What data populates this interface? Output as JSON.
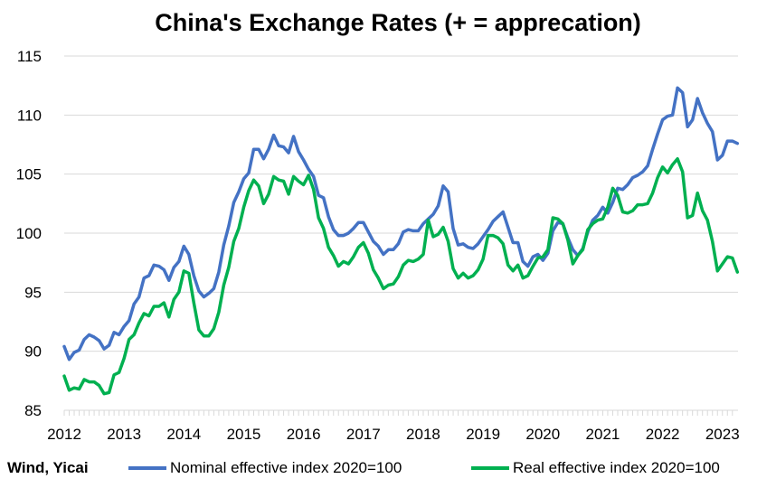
{
  "chart_data": {
    "type": "line",
    "title": "China's Exchange Rates (+ = apprecation)",
    "source": "Wind, Yicai",
    "xlabel": "",
    "ylabel": "",
    "x_tick_labels": [
      "2012",
      "2013",
      "2014",
      "2015",
      "2016",
      "2017",
      "2018",
      "2019",
      "2020",
      "2021",
      "2022",
      "2023"
    ],
    "y_ticks": [
      85,
      90,
      95,
      100,
      105,
      110,
      115
    ],
    "y_tick_labels": [
      "85",
      "90",
      "95",
      "100",
      "105",
      "110",
      "115"
    ],
    "ylim": [
      85,
      115
    ],
    "x_range": [
      "2012-01",
      "2023-03"
    ],
    "grid": "horizontal",
    "legend_position": "bottom",
    "colors": {
      "nominal": "#4472c4",
      "real": "#00b050",
      "grid": "#d9d9d9"
    },
    "series": [
      {
        "name": "Nominal effective index 2020=100",
        "color": "#4472c4",
        "points": [
          [
            "2012-01",
            90.4
          ],
          [
            "2012-02",
            89.3
          ],
          [
            "2012-03",
            89.9
          ],
          [
            "2012-04",
            90.1
          ],
          [
            "2012-05",
            91.0
          ],
          [
            "2012-06",
            91.4
          ],
          [
            "2012-07",
            91.2
          ],
          [
            "2012-08",
            90.9
          ],
          [
            "2012-09",
            90.2
          ],
          [
            "2012-10",
            90.5
          ],
          [
            "2012-11",
            91.6
          ],
          [
            "2012-12",
            91.4
          ],
          [
            "2013-01",
            92.1
          ],
          [
            "2013-02",
            92.6
          ],
          [
            "2013-03",
            94.0
          ],
          [
            "2013-04",
            94.6
          ],
          [
            "2013-05",
            96.2
          ],
          [
            "2013-06",
            96.4
          ],
          [
            "2013-07",
            97.3
          ],
          [
            "2013-08",
            97.2
          ],
          [
            "2013-09",
            96.9
          ],
          [
            "2013-10",
            96.0
          ],
          [
            "2013-11",
            97.1
          ],
          [
            "2013-12",
            97.6
          ],
          [
            "2014-01",
            98.9
          ],
          [
            "2014-02",
            98.2
          ],
          [
            "2014-03",
            96.4
          ],
          [
            "2014-04",
            95.1
          ],
          [
            "2014-05",
            94.6
          ],
          [
            "2014-06",
            94.9
          ],
          [
            "2014-07",
            95.3
          ],
          [
            "2014-08",
            96.7
          ],
          [
            "2014-09",
            99.0
          ],
          [
            "2014-10",
            100.6
          ],
          [
            "2014-11",
            102.6
          ],
          [
            "2014-12",
            103.5
          ],
          [
            "2015-01",
            104.6
          ],
          [
            "2015-02",
            105.1
          ],
          [
            "2015-03",
            107.1
          ],
          [
            "2015-04",
            107.1
          ],
          [
            "2015-05",
            106.3
          ],
          [
            "2015-06",
            107.1
          ],
          [
            "2015-07",
            108.3
          ],
          [
            "2015-08",
            107.4
          ],
          [
            "2015-09",
            107.3
          ],
          [
            "2015-10",
            106.8
          ],
          [
            "2015-11",
            108.2
          ],
          [
            "2015-12",
            106.9
          ],
          [
            "2016-01",
            106.2
          ],
          [
            "2016-02",
            105.4
          ],
          [
            "2016-03",
            104.8
          ],
          [
            "2016-04",
            103.2
          ],
          [
            "2016-05",
            103.0
          ],
          [
            "2016-06",
            101.4
          ],
          [
            "2016-07",
            100.3
          ],
          [
            "2016-08",
            99.8
          ],
          [
            "2016-09",
            99.8
          ],
          [
            "2016-10",
            100.0
          ],
          [
            "2016-11",
            100.4
          ],
          [
            "2016-12",
            100.9
          ],
          [
            "2017-01",
            100.9
          ],
          [
            "2017-02",
            100.1
          ],
          [
            "2017-03",
            99.3
          ],
          [
            "2017-04",
            98.9
          ],
          [
            "2017-05",
            98.2
          ],
          [
            "2017-06",
            98.6
          ],
          [
            "2017-07",
            98.6
          ],
          [
            "2017-08",
            99.1
          ],
          [
            "2017-09",
            100.1
          ],
          [
            "2017-10",
            100.3
          ],
          [
            "2017-11",
            100.2
          ],
          [
            "2017-12",
            100.2
          ],
          [
            "2018-01",
            100.8
          ],
          [
            "2018-02",
            101.2
          ],
          [
            "2018-03",
            101.6
          ],
          [
            "2018-04",
            102.3
          ],
          [
            "2018-05",
            104.0
          ],
          [
            "2018-06",
            103.5
          ],
          [
            "2018-07",
            100.4
          ],
          [
            "2018-08",
            99.0
          ],
          [
            "2018-09",
            99.1
          ],
          [
            "2018-10",
            98.8
          ],
          [
            "2018-11",
            98.7
          ],
          [
            "2018-12",
            99.1
          ],
          [
            "2019-01",
            99.7
          ],
          [
            "2019-02",
            100.3
          ],
          [
            "2019-03",
            101.0
          ],
          [
            "2019-04",
            101.4
          ],
          [
            "2019-05",
            101.8
          ],
          [
            "2019-06",
            100.5
          ],
          [
            "2019-07",
            99.2
          ],
          [
            "2019-08",
            99.2
          ],
          [
            "2019-09",
            97.6
          ],
          [
            "2019-10",
            97.2
          ],
          [
            "2019-11",
            98.0
          ],
          [
            "2019-12",
            98.2
          ],
          [
            "2020-01",
            97.7
          ],
          [
            "2020-02",
            98.3
          ],
          [
            "2020-03",
            100.2
          ],
          [
            "2020-04",
            100.9
          ],
          [
            "2020-05",
            100.8
          ],
          [
            "2020-06",
            99.6
          ],
          [
            "2020-07",
            98.6
          ],
          [
            "2020-08",
            98.1
          ],
          [
            "2020-09",
            98.7
          ],
          [
            "2020-10",
            100.1
          ],
          [
            "2020-11",
            101.1
          ],
          [
            "2020-12",
            101.5
          ],
          [
            "2021-01",
            102.2
          ],
          [
            "2021-02",
            101.7
          ],
          [
            "2021-03",
            102.6
          ],
          [
            "2021-04",
            103.8
          ],
          [
            "2021-05",
            103.7
          ],
          [
            "2021-06",
            104.1
          ],
          [
            "2021-07",
            104.7
          ],
          [
            "2021-08",
            104.9
          ],
          [
            "2021-09",
            105.2
          ],
          [
            "2021-10",
            105.7
          ],
          [
            "2021-11",
            107.1
          ],
          [
            "2021-12",
            108.4
          ],
          [
            "2022-01",
            109.6
          ],
          [
            "2022-02",
            109.9
          ],
          [
            "2022-03",
            110.0
          ],
          [
            "2022-04",
            112.3
          ],
          [
            "2022-05",
            111.9
          ],
          [
            "2022-06",
            109.0
          ],
          [
            "2022-07",
            109.6
          ],
          [
            "2022-08",
            111.4
          ],
          [
            "2022-09",
            110.2
          ],
          [
            "2022-10",
            109.3
          ],
          [
            "2022-11",
            108.6
          ],
          [
            "2022-12",
            106.2
          ],
          [
            "2023-01",
            106.6
          ],
          [
            "2023-02",
            107.8
          ],
          [
            "2023-03",
            107.8
          ],
          [
            "2023-04",
            107.6
          ]
        ]
      },
      {
        "name": "Real effective index 2020=100",
        "color": "#00b050",
        "points": [
          [
            "2012-01",
            87.9
          ],
          [
            "2012-02",
            86.7
          ],
          [
            "2012-03",
            86.9
          ],
          [
            "2012-04",
            86.8
          ],
          [
            "2012-05",
            87.6
          ],
          [
            "2012-06",
            87.4
          ],
          [
            "2012-07",
            87.4
          ],
          [
            "2012-08",
            87.1
          ],
          [
            "2012-09",
            86.4
          ],
          [
            "2012-10",
            86.5
          ],
          [
            "2012-11",
            88.0
          ],
          [
            "2012-12",
            88.2
          ],
          [
            "2013-01",
            89.4
          ],
          [
            "2013-02",
            91.0
          ],
          [
            "2013-03",
            91.4
          ],
          [
            "2013-04",
            92.4
          ],
          [
            "2013-05",
            93.2
          ],
          [
            "2013-06",
            93.0
          ],
          [
            "2013-07",
            93.8
          ],
          [
            "2013-08",
            93.8
          ],
          [
            "2013-09",
            94.1
          ],
          [
            "2013-10",
            92.9
          ],
          [
            "2013-11",
            94.4
          ],
          [
            "2013-12",
            95.0
          ],
          [
            "2014-01",
            96.8
          ],
          [
            "2014-02",
            96.6
          ],
          [
            "2014-03",
            94.1
          ],
          [
            "2014-04",
            91.8
          ],
          [
            "2014-05",
            91.3
          ],
          [
            "2014-06",
            91.3
          ],
          [
            "2014-07",
            91.9
          ],
          [
            "2014-08",
            93.3
          ],
          [
            "2014-09",
            95.6
          ],
          [
            "2014-10",
            97.1
          ],
          [
            "2014-11",
            99.3
          ],
          [
            "2014-12",
            100.4
          ],
          [
            "2015-01",
            102.2
          ],
          [
            "2015-02",
            103.6
          ],
          [
            "2015-03",
            104.5
          ],
          [
            "2015-04",
            104.0
          ],
          [
            "2015-05",
            102.5
          ],
          [
            "2015-06",
            103.3
          ],
          [
            "2015-07",
            104.8
          ],
          [
            "2015-08",
            104.5
          ],
          [
            "2015-09",
            104.4
          ],
          [
            "2015-10",
            103.3
          ],
          [
            "2015-11",
            104.8
          ],
          [
            "2015-12",
            104.4
          ],
          [
            "2016-01",
            104.1
          ],
          [
            "2016-02",
            104.9
          ],
          [
            "2016-03",
            103.7
          ],
          [
            "2016-04",
            101.3
          ],
          [
            "2016-05",
            100.4
          ],
          [
            "2016-06",
            98.8
          ],
          [
            "2016-07",
            98.1
          ],
          [
            "2016-08",
            97.2
          ],
          [
            "2016-09",
            97.6
          ],
          [
            "2016-10",
            97.4
          ],
          [
            "2016-11",
            98.0
          ],
          [
            "2016-12",
            98.8
          ],
          [
            "2017-01",
            99.2
          ],
          [
            "2017-02",
            98.3
          ],
          [
            "2017-03",
            96.9
          ],
          [
            "2017-04",
            96.2
          ],
          [
            "2017-05",
            95.3
          ],
          [
            "2017-06",
            95.6
          ],
          [
            "2017-07",
            95.7
          ],
          [
            "2017-08",
            96.3
          ],
          [
            "2017-09",
            97.3
          ],
          [
            "2017-10",
            97.7
          ],
          [
            "2017-11",
            97.6
          ],
          [
            "2017-12",
            97.8
          ],
          [
            "2018-01",
            98.2
          ],
          [
            "2018-02",
            101.1
          ],
          [
            "2018-03",
            99.7
          ],
          [
            "2018-04",
            99.9
          ],
          [
            "2018-05",
            100.5
          ],
          [
            "2018-06",
            99.3
          ],
          [
            "2018-07",
            97.0
          ],
          [
            "2018-08",
            96.2
          ],
          [
            "2018-09",
            96.6
          ],
          [
            "2018-10",
            96.2
          ],
          [
            "2018-11",
            96.4
          ],
          [
            "2018-12",
            96.9
          ],
          [
            "2019-01",
            97.8
          ],
          [
            "2019-02",
            99.8
          ],
          [
            "2019-03",
            99.8
          ],
          [
            "2019-04",
            99.6
          ],
          [
            "2019-05",
            99.1
          ],
          [
            "2019-06",
            97.3
          ],
          [
            "2019-07",
            96.8
          ],
          [
            "2019-08",
            97.3
          ],
          [
            "2019-09",
            96.2
          ],
          [
            "2019-10",
            96.4
          ],
          [
            "2019-11",
            97.2
          ],
          [
            "2019-12",
            97.9
          ],
          [
            "2020-01",
            98.0
          ],
          [
            "2020-02",
            98.6
          ],
          [
            "2020-03",
            101.3
          ],
          [
            "2020-04",
            101.2
          ],
          [
            "2020-05",
            100.8
          ],
          [
            "2020-06",
            99.4
          ],
          [
            "2020-07",
            97.4
          ],
          [
            "2020-08",
            98.1
          ],
          [
            "2020-09",
            98.6
          ],
          [
            "2020-10",
            100.3
          ],
          [
            "2020-11",
            100.8
          ],
          [
            "2020-12",
            101.1
          ],
          [
            "2021-01",
            101.2
          ],
          [
            "2021-02",
            102.2
          ],
          [
            "2021-03",
            103.8
          ],
          [
            "2021-04",
            103.2
          ],
          [
            "2021-05",
            101.8
          ],
          [
            "2021-06",
            101.7
          ],
          [
            "2021-07",
            101.9
          ],
          [
            "2021-08",
            102.4
          ],
          [
            "2021-09",
            102.4
          ],
          [
            "2021-10",
            102.5
          ],
          [
            "2021-11",
            103.4
          ],
          [
            "2021-12",
            104.7
          ],
          [
            "2022-01",
            105.6
          ],
          [
            "2022-02",
            105.1
          ],
          [
            "2022-03",
            105.8
          ],
          [
            "2022-04",
            106.3
          ],
          [
            "2022-05",
            105.2
          ],
          [
            "2022-06",
            101.3
          ],
          [
            "2022-07",
            101.5
          ],
          [
            "2022-08",
            103.4
          ],
          [
            "2022-09",
            101.9
          ],
          [
            "2022-10",
            101.1
          ],
          [
            "2022-11",
            99.3
          ],
          [
            "2022-12",
            96.8
          ],
          [
            "2023-01",
            97.4
          ],
          [
            "2023-02",
            98.0
          ],
          [
            "2023-03",
            97.9
          ],
          [
            "2023-04",
            96.7
          ]
        ]
      }
    ]
  }
}
